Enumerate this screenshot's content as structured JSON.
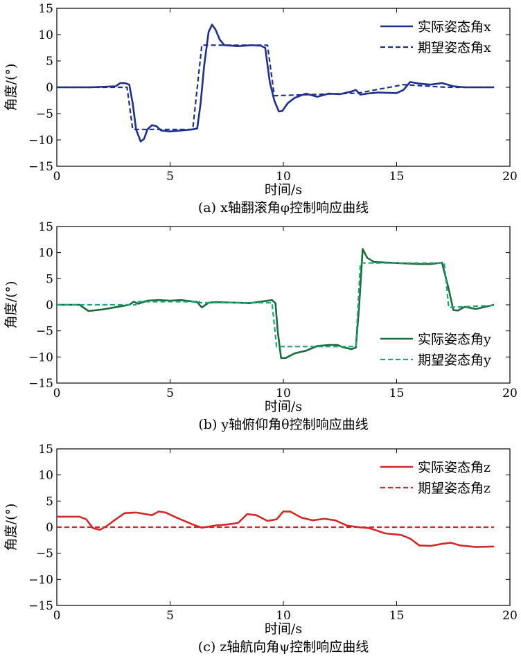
{
  "chart_data": [
    {
      "type": "line",
      "caption": "(a) x轴翻滚角φ控制响应曲线",
      "xlabel": "时间/s",
      "ylabel": "角度/(°)",
      "xlim": [
        0,
        20
      ],
      "ylim": [
        -15,
        15
      ],
      "xticks": [
        "0",
        "5",
        "10",
        "15",
        "20"
      ],
      "yticks": [
        "15",
        "10",
        "5",
        "0",
        "−5",
        "−10",
        "−15"
      ],
      "legend_position": "top-right",
      "series": [
        {
          "name": "实际姿态角x",
          "color": "#1f2f8c",
          "style": "solid",
          "points": [
            [
              0,
              0
            ],
            [
              1.5,
              0
            ],
            [
              2.6,
              0.2
            ],
            [
              2.8,
              0.8
            ],
            [
              3.0,
              0.8
            ],
            [
              3.2,
              0.5
            ],
            [
              3.35,
              -3
            ],
            [
              3.5,
              -8
            ],
            [
              3.7,
              -10.3
            ],
            [
              3.85,
              -9.8
            ],
            [
              4.0,
              -8
            ],
            [
              4.2,
              -7.2
            ],
            [
              4.4,
              -7.4
            ],
            [
              4.6,
              -8.2
            ],
            [
              5.0,
              -8.4
            ],
            [
              5.5,
              -8.2
            ],
            [
              6.0,
              -8.0
            ],
            [
              6.2,
              -7.8
            ],
            [
              6.35,
              -3
            ],
            [
              6.5,
              4
            ],
            [
              6.7,
              10.5
            ],
            [
              6.85,
              11.9
            ],
            [
              7.0,
              11
            ],
            [
              7.2,
              9
            ],
            [
              7.4,
              8
            ],
            [
              8.0,
              7.8
            ],
            [
              8.6,
              8.0
            ],
            [
              9.0,
              7.9
            ],
            [
              9.2,
              7.5
            ],
            [
              9.4,
              1
            ],
            [
              9.6,
              -2.5
            ],
            [
              9.8,
              -4.6
            ],
            [
              9.95,
              -4.5
            ],
            [
              10.2,
              -3
            ],
            [
              10.5,
              -2.0
            ],
            [
              11.0,
              -1.2
            ],
            [
              11.5,
              -1.8
            ],
            [
              12.0,
              -1.2
            ],
            [
              12.5,
              -1.3
            ],
            [
              13.0,
              -0.8
            ],
            [
              13.2,
              -0.5
            ],
            [
              13.4,
              -1.4
            ],
            [
              13.7,
              -1.2
            ],
            [
              14.2,
              -1.0
            ],
            [
              15.0,
              -1.1
            ],
            [
              15.3,
              -0.5
            ],
            [
              15.6,
              1.0
            ],
            [
              16.0,
              0.7
            ],
            [
              16.5,
              0.5
            ],
            [
              17.0,
              0.8
            ],
            [
              17.5,
              0.2
            ],
            [
              18.0,
              0
            ],
            [
              19.3,
              0
            ]
          ]
        },
        {
          "name": "期望姿态角x",
          "color": "#1f2f8c",
          "style": "dashed",
          "points": [
            [
              0,
              0
            ],
            [
              3.1,
              0
            ],
            [
              3.35,
              -8
            ],
            [
              6.0,
              -8
            ],
            [
              6.4,
              8
            ],
            [
              9.3,
              8
            ],
            [
              9.6,
              -1.6
            ],
            [
              13.3,
              -1.1
            ],
            [
              15.3,
              0.5
            ],
            [
              17.2,
              0
            ],
            [
              19.3,
              0
            ]
          ]
        }
      ]
    },
    {
      "type": "line",
      "caption": "(b) y轴俯仰角θ控制响应曲线",
      "xlabel": "时间/s",
      "ylabel": "角度/(°)",
      "xlim": [
        0,
        20
      ],
      "ylim": [
        -15,
        15
      ],
      "xticks": [
        "0",
        "5",
        "10",
        "15",
        "20"
      ],
      "yticks": [
        "15",
        "10",
        "5",
        "0",
        "−5",
        "−10",
        "−15"
      ],
      "legend_position": "bottom-right",
      "series": [
        {
          "name": "实际姿态角y",
          "color": "#1a6b3a",
          "style": "solid",
          "points": [
            [
              0,
              0
            ],
            [
              1.0,
              0
            ],
            [
              1.4,
              -1.2
            ],
            [
              2.0,
              -0.9
            ],
            [
              2.8,
              -0.3
            ],
            [
              3.2,
              0
            ],
            [
              3.4,
              0.6
            ],
            [
              3.6,
              0.2
            ],
            [
              4.0,
              0.8
            ],
            [
              4.5,
              0.9
            ],
            [
              5.0,
              0.8
            ],
            [
              5.5,
              0.9
            ],
            [
              6.2,
              0.5
            ],
            [
              6.4,
              -0.5
            ],
            [
              6.7,
              0.4
            ],
            [
              7.0,
              0.5
            ],
            [
              8.0,
              0.4
            ],
            [
              8.5,
              0.3
            ],
            [
              9.0,
              0.6
            ],
            [
              9.5,
              0.9
            ],
            [
              9.65,
              0.3
            ],
            [
              9.75,
              -5
            ],
            [
              9.9,
              -10.2
            ],
            [
              10.1,
              -10.2
            ],
            [
              10.5,
              -9.3
            ],
            [
              11.0,
              -8.8
            ],
            [
              11.5,
              -7.9
            ],
            [
              12.0,
              -7.7
            ],
            [
              12.4,
              -7.7
            ],
            [
              12.6,
              -8.1
            ],
            [
              13.0,
              -8.5
            ],
            [
              13.2,
              -8.2
            ],
            [
              13.35,
              0
            ],
            [
              13.5,
              10.7
            ],
            [
              13.7,
              9
            ],
            [
              14.0,
              8.2
            ],
            [
              15.0,
              8.0
            ],
            [
              16.0,
              7.8
            ],
            [
              16.5,
              7.8
            ],
            [
              17.0,
              8.1
            ],
            [
              17.3,
              3
            ],
            [
              17.5,
              -1
            ],
            [
              17.7,
              -1.1
            ],
            [
              18.0,
              -0.4
            ],
            [
              18.5,
              -0.8
            ],
            [
              19.3,
              0
            ]
          ]
        },
        {
          "name": "期望姿态角y",
          "color": "#22a27a",
          "style": "dashed",
          "points": [
            [
              0,
              0
            ],
            [
              3.5,
              0
            ],
            [
              3.5,
              0.6
            ],
            [
              6.3,
              0.6
            ],
            [
              6.3,
              0.4
            ],
            [
              9.5,
              0.4
            ],
            [
              9.7,
              -8
            ],
            [
              13.2,
              -8
            ],
            [
              13.4,
              8
            ],
            [
              17.1,
              8
            ],
            [
              17.3,
              -0.5
            ],
            [
              19.3,
              -0.1
            ]
          ]
        }
      ]
    },
    {
      "type": "line",
      "caption": "(c) z轴航向角ψ控制响应曲线",
      "xlabel": "时间/s",
      "ylabel": "角度/(°)",
      "xlim": [
        0,
        20
      ],
      "ylim": [
        -15,
        15
      ],
      "xticks": [
        "0",
        "5",
        "10",
        "15",
        "20"
      ],
      "yticks": [
        "15",
        "10",
        "5",
        "0",
        "−5",
        "−10",
        "−15"
      ],
      "legend_position": "top-right",
      "series": [
        {
          "name": "实际姿态角z",
          "color": "#d62728",
          "style": "solid",
          "points": [
            [
              0,
              2
            ],
            [
              1.0,
              2
            ],
            [
              1.3,
              1.5
            ],
            [
              1.6,
              -0.2
            ],
            [
              1.9,
              -0.5
            ],
            [
              2.2,
              0.2
            ],
            [
              2.6,
              1.5
            ],
            [
              3.0,
              2.7
            ],
            [
              3.5,
              2.8
            ],
            [
              4.2,
              2.3
            ],
            [
              4.5,
              3.0
            ],
            [
              4.8,
              2.8
            ],
            [
              5.3,
              1.8
            ],
            [
              6.0,
              0.5
            ],
            [
              6.4,
              -0.1
            ],
            [
              7.0,
              0.3
            ],
            [
              7.5,
              0.5
            ],
            [
              8.0,
              0.8
            ],
            [
              8.4,
              2.5
            ],
            [
              8.8,
              2.3
            ],
            [
              9.3,
              1.2
            ],
            [
              9.7,
              1.5
            ],
            [
              10.0,
              3.0
            ],
            [
              10.3,
              3.0
            ],
            [
              10.8,
              1.8
            ],
            [
              11.3,
              1.3
            ],
            [
              11.8,
              1.6
            ],
            [
              12.3,
              1.3
            ],
            [
              12.8,
              0.3
            ],
            [
              13.3,
              0
            ],
            [
              13.8,
              -0.2
            ],
            [
              14.5,
              -1.2
            ],
            [
              15.2,
              -1.5
            ],
            [
              15.6,
              -2.2
            ],
            [
              16.0,
              -3.5
            ],
            [
              16.5,
              -3.6
            ],
            [
              17.0,
              -3.2
            ],
            [
              17.4,
              -3.0
            ],
            [
              17.8,
              -3.5
            ],
            [
              18.5,
              -3.8
            ],
            [
              19.3,
              -3.7
            ]
          ]
        },
        {
          "name": "期望姿态角z",
          "color": "#d62728",
          "style": "dashed",
          "points": [
            [
              0,
              0
            ],
            [
              19.3,
              0
            ]
          ]
        }
      ]
    }
  ]
}
